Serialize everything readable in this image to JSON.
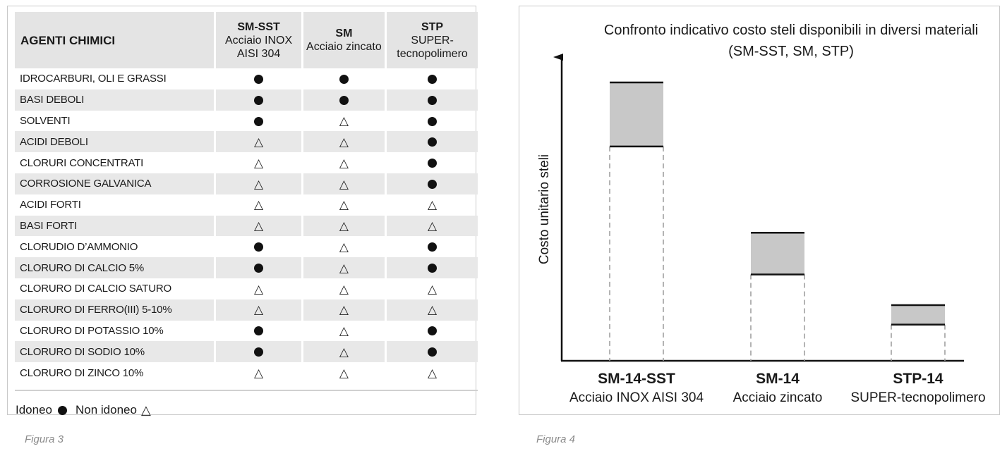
{
  "figure3": {
    "caption": "Figura 3",
    "header": {
      "agents": "AGENTI CHIMICI",
      "columns": [
        {
          "code": "SM-SST",
          "desc": "Acciaio INOX AISI 304"
        },
        {
          "code": "SM",
          "desc": "Acciaio zincato"
        },
        {
          "code": "STP",
          "desc": "SUPER-tecnopolimero"
        }
      ]
    },
    "rows": [
      {
        "agent": "IDROCARBURI, OLI E GRASSI",
        "marks": [
          "idoneo",
          "idoneo",
          "idoneo"
        ]
      },
      {
        "agent": "BASI DEBOLI",
        "marks": [
          "idoneo",
          "idoneo",
          "idoneo"
        ]
      },
      {
        "agent": "SOLVENTI",
        "marks": [
          "idoneo",
          "non_idoneo",
          "idoneo"
        ]
      },
      {
        "agent": "ACIDI DEBOLI",
        "marks": [
          "non_idoneo",
          "non_idoneo",
          "idoneo"
        ]
      },
      {
        "agent": "CLORURI CONCENTRATI",
        "marks": [
          "non_idoneo",
          "non_idoneo",
          "idoneo"
        ]
      },
      {
        "agent": "CORROSIONE GALVANICA",
        "marks": [
          "non_idoneo",
          "non_idoneo",
          "idoneo"
        ]
      },
      {
        "agent": "ACIDI FORTI",
        "marks": [
          "non_idoneo",
          "non_idoneo",
          "non_idoneo"
        ]
      },
      {
        "agent": "BASI FORTI",
        "marks": [
          "non_idoneo",
          "non_idoneo",
          "non_idoneo"
        ]
      },
      {
        "agent": "CLORUDIO D’AMMONIO",
        "marks": [
          "idoneo",
          "non_idoneo",
          "idoneo"
        ]
      },
      {
        "agent": "CLORURO DI CALCIO 5%",
        "marks": [
          "idoneo",
          "non_idoneo",
          "idoneo"
        ]
      },
      {
        "agent": "CLORURO DI CALCIO SATURO",
        "marks": [
          "non_idoneo",
          "non_idoneo",
          "non_idoneo"
        ]
      },
      {
        "agent": "CLORURO DI FERRO(III) 5-10%",
        "marks": [
          "non_idoneo",
          "non_idoneo",
          "non_idoneo"
        ]
      },
      {
        "agent": "CLORURO DI POTASSIO 10%",
        "marks": [
          "idoneo",
          "non_idoneo",
          "idoneo"
        ]
      },
      {
        "agent": "CLORURO DI SODIO 10%",
        "marks": [
          "idoneo",
          "non_idoneo",
          "idoneo"
        ]
      },
      {
        "agent": "CLORURO DI ZINCO 10%",
        "marks": [
          "non_idoneo",
          "non_idoneo",
          "non_idoneo"
        ]
      }
    ],
    "legend": {
      "idoneo_label": "Idoneo",
      "non_idoneo_label": "Non idoneo"
    }
  },
  "figure4": {
    "caption": "Figura 4",
    "chart_data": {
      "type": "bar",
      "title_line1": "Confronto indicativo costo steli disponibili in diversi materiali",
      "title_line2": "(SM-SST, SM, STP)",
      "ylabel": "Costo unitario steli",
      "y_ticks": "none",
      "grid": false,
      "ylim": [
        0,
        100
      ],
      "categories": [
        {
          "code": "SM-14-SST",
          "desc": "Acciaio INOX AISI 304"
        },
        {
          "code": "SM-14",
          "desc": "Acciaio zincato"
        },
        {
          "code": "STP-14",
          "desc": "SUPER-tecnopolimero"
        }
      ],
      "cost_range": [
        {
          "low": 77,
          "high": 100
        },
        {
          "low": 31,
          "high": 46
        },
        {
          "low": 13,
          "high": 20
        }
      ],
      "colors": {
        "range_fill": "#c8c8c8",
        "line": "#111111",
        "dash": "#9a9a9a"
      }
    }
  }
}
